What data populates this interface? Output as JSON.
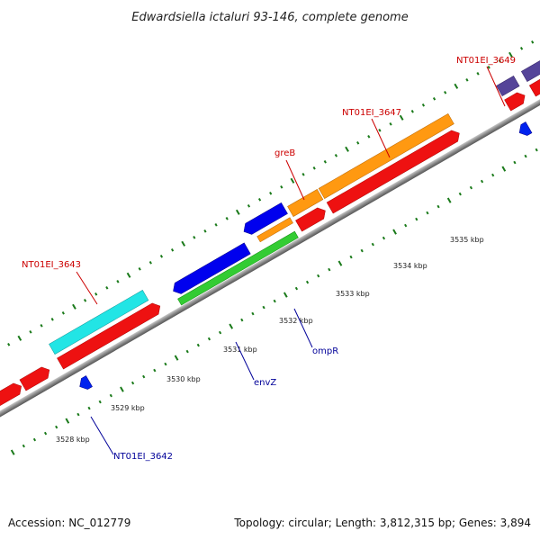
{
  "title": "Edwardsiella ictaluri 93-146, complete genome",
  "footer": {
    "accession": "Accession: NC_012779",
    "summary": "Topology: circular; Length: 3,812,315 bp; Genes: 3,894"
  },
  "colors": {
    "backbone": "#888888",
    "tick": "#1a7a1a",
    "forward_cds": "#ff0000",
    "reverse_cds": "#0000ff",
    "label_forward": "#cc0000",
    "label_reverse": "#000099"
  },
  "tick_labels": [
    "3528 kbp",
    "3529 kbp",
    "3530 kbp",
    "3531 kbp",
    "3532 kbp",
    "3533 kbp",
    "3534 kbp",
    "3535 kbp"
  ],
  "gene_labels": {
    "nt3643": "NT01EI_3643",
    "greB": "greB",
    "nt3647": "NT01EI_3647",
    "nt3649": "NT01EI_3649",
    "nt3642": "NT01EI_3642",
    "envZ": "envZ",
    "ompR": "ompR"
  }
}
